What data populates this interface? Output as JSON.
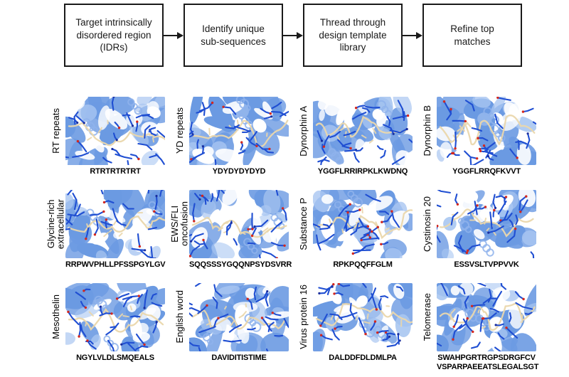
{
  "flowchart": {
    "steps": [
      {
        "label": "Target intrinsically\ndisordered region\n(IDRs)"
      },
      {
        "label": "Identify unique\nsub-sequences"
      },
      {
        "label": "Thread through\ndesign template\nlibrary"
      },
      {
        "label": "Refine top\nmatches"
      }
    ]
  },
  "grid": {
    "panels": [
      {
        "label": "RT repeats",
        "sequence": "RTRTRTRTRT"
      },
      {
        "label": "YD repeats",
        "sequence": "YDYDYDYDYD"
      },
      {
        "label": "Dynorphin A",
        "sequence": "YGGFLRRIRPKLKWDNQ"
      },
      {
        "label": "Dynorphin B",
        "sequence": "YGGFLRRQFKVVT"
      },
      {
        "label": "Glycine-rich\nextracellular",
        "sequence": "RRPWVPHLLPFSSPGYLGV"
      },
      {
        "label": "EWS/FLI\noncofusion",
        "sequence": "SQQSSSYGQQNPSYDSVRR"
      },
      {
        "label": "Substance P",
        "sequence": "RPKPQQFFGLM"
      },
      {
        "label": "Cystinosin 20",
        "sequence": "ESSVSLTVPPVVK"
      },
      {
        "label": "Mesothelin",
        "sequence": "NGYLVLDLSMQEALS"
      },
      {
        "label": "English word",
        "sequence": "DAVIDITISTIME"
      },
      {
        "label": "Virus protein 16",
        "sequence": "DALDDFDLDMLPA"
      },
      {
        "label": "Telomerase",
        "sequence": "SWAHPGRTRGPSDRGFCV\nVSPARPAEEATSLEGALSGT"
      }
    ]
  },
  "colors": {
    "box_border": "#1a1a1a",
    "panel_background": "#6b9ae2",
    "ribbon_light": "#a9c6f1",
    "coil_blue": "#8fb3ec",
    "stick_blue": "#1f4ed2",
    "nitrogen_navy": "#1b2f9e",
    "oxygen_red": "#d4281e",
    "peptide_wheat": "#ead7ac"
  }
}
